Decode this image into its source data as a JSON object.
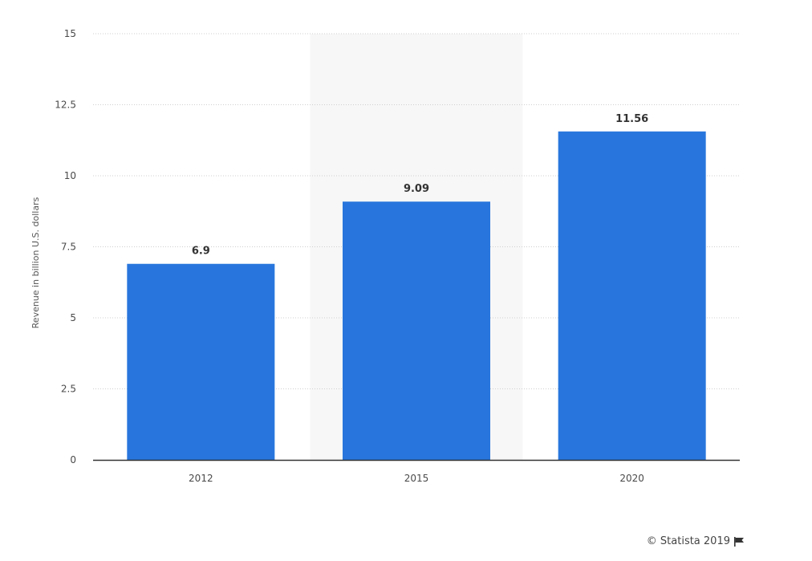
{
  "chart_data": {
    "type": "bar",
    "categories": [
      "2012",
      "2015",
      "2020"
    ],
    "values": [
      6.9,
      9.09,
      11.56
    ],
    "data_labels": [
      "6.9",
      "9.09",
      "11.56"
    ],
    "title": "",
    "xlabel": "",
    "ylabel": "Revenue in billion U.S. dollars",
    "ylim": [
      0,
      15
    ],
    "yticks": [
      0,
      2.5,
      5,
      7.5,
      10,
      12.5,
      15
    ],
    "ytick_labels": [
      "0",
      "2.5",
      "5",
      "7.5",
      "10",
      "12.5",
      "15"
    ],
    "grid": true,
    "legend": "none",
    "highlighted_category": "2015",
    "colors": {
      "bar": "#2876DD",
      "highlight_band": "#F7F7F7",
      "gridline": "#CFCFCF",
      "axis": "#333333"
    }
  },
  "footer": {
    "credit": "© Statista 2019",
    "flag_icon": "flag-icon"
  }
}
